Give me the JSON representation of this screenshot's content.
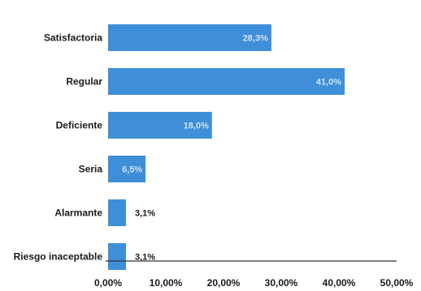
{
  "chart_data": {
    "type": "bar",
    "orientation": "horizontal",
    "categories": [
      "Satisfactoria",
      "Regular",
      "Deficiente",
      "Seria",
      "Alarmante",
      "Riesgo inaceptable"
    ],
    "values": [
      28.3,
      41.0,
      18.0,
      6.5,
      3.1,
      3.1
    ],
    "value_labels": [
      "28,3%",
      "41,0%",
      "18,0%",
      "6,5%",
      "3,1%",
      "3,1%"
    ],
    "xticks": [
      "0,00%",
      "10,00%",
      "20,00%",
      "30,00%",
      "40,00%",
      "50,00%"
    ],
    "xlim": [
      0,
      50
    ],
    "title": "",
    "xlabel": "",
    "ylabel": "",
    "grid": false,
    "legend": "none",
    "bar_color": "#3f8fd8",
    "inside_label_color": "#cfe3f6"
  }
}
